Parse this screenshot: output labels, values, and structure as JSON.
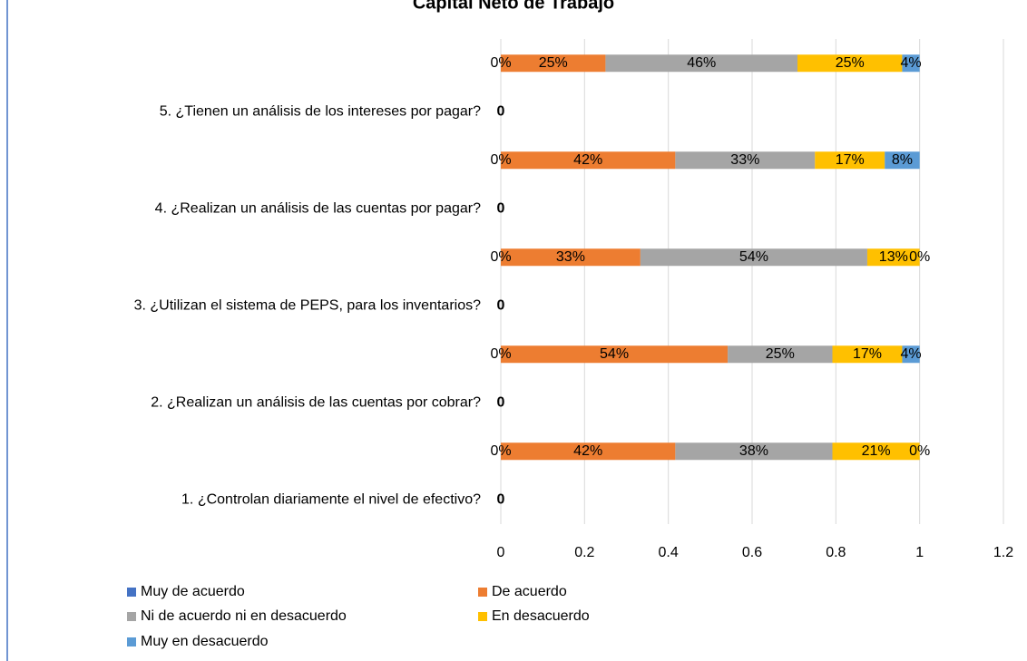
{
  "chart_data": {
    "type": "stacked_barh",
    "title": "Capital Neto de Trabajo",
    "categories": [
      "1. ¿Controlan diariamente el nivel de efectivo?",
      null,
      "2. ¿Realizan un análisis de las cuentas por cobrar?",
      null,
      "3. ¿Utilizan el sistema de PEPS, para los inventarios?",
      null,
      "4. ¿Realizan un análisis de las cuentas por pagar?",
      null,
      "5. ¿Tienen un análisis de los intereses por pagar?",
      null
    ],
    "series": [
      {
        "name": "Muy de acuerdo",
        "color": "#4472c4",
        "values": [
          0,
          0,
          0,
          0,
          0,
          0,
          0,
          0,
          0,
          0
        ],
        "value_labels": [
          "0",
          "0%",
          "0",
          "0%",
          "0",
          "0%",
          "0",
          "0%",
          "0",
          "0%"
        ]
      },
      {
        "name": "De acuerdo",
        "color": "#ed7d31",
        "values": [
          null,
          0.4167,
          null,
          0.5417,
          null,
          0.3333,
          null,
          0.4167,
          null,
          0.25
        ],
        "value_labels": [
          null,
          "42%",
          null,
          "54%",
          null,
          "33%",
          null,
          "42%",
          null,
          "25%"
        ]
      },
      {
        "name": "Ni de acuerdo ni en desacuerdo",
        "color": "#a5a5a5",
        "values": [
          null,
          0.375,
          null,
          0.25,
          null,
          0.5417,
          null,
          0.3333,
          null,
          0.4583
        ],
        "value_labels": [
          null,
          "38%",
          null,
          "25%",
          null,
          "54%",
          null,
          "33%",
          null,
          "46%"
        ]
      },
      {
        "name": "En desacuerdo",
        "color": "#ffc000",
        "values": [
          null,
          0.2083,
          null,
          0.1667,
          null,
          0.125,
          null,
          0.1667,
          null,
          0.25
        ],
        "value_labels": [
          null,
          "21%",
          null,
          "17%",
          null,
          "13%",
          null,
          "17%",
          null,
          "25%"
        ]
      },
      {
        "name": "Muy en desacuerdo",
        "color": "#5b9bd5",
        "values": [
          null,
          0,
          null,
          0.0417,
          null,
          0,
          null,
          0.0833,
          null,
          0.0417
        ],
        "value_labels": [
          null,
          "0%",
          null,
          "4%",
          null,
          "0%",
          null,
          "8%",
          null,
          "4%"
        ]
      }
    ],
    "xlim": [
      0,
      1.2
    ],
    "xticks": [
      0,
      0.2,
      0.4,
      0.6,
      0.8,
      1,
      1.2
    ],
    "grid": true
  }
}
